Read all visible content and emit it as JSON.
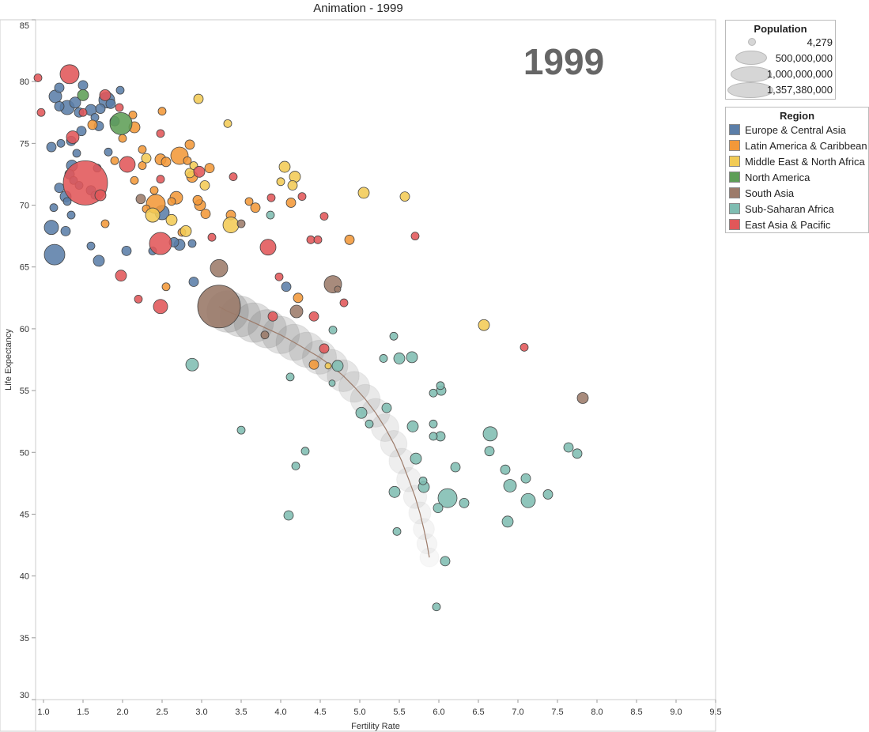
{
  "chart_data": {
    "type": "scatter",
    "title": "Animation - 1999",
    "watermark": "1999",
    "xlabel": "Fertility Rate",
    "ylabel": "Life Expectancy",
    "xlim": [
      0.9,
      9.5
    ],
    "ylim": [
      30,
      85
    ],
    "x_ticks": [
      "1.0",
      "1.5",
      "2.0",
      "2.5",
      "3.0",
      "3.5",
      "4.0",
      "4.5",
      "5.0",
      "5.5",
      "6.0",
      "6.5",
      "7.0",
      "7.5",
      "8.0",
      "8.5",
      "9.0",
      "9.5"
    ],
    "y_ticks": [
      "30",
      "35",
      "40",
      "45",
      "50",
      "55",
      "60",
      "65",
      "70",
      "75",
      "80",
      "85"
    ],
    "size_legend": {
      "title": "Population",
      "entries": [
        "4,279",
        "500,000,000",
        "1,000,000,000",
        "1,357,380,000"
      ]
    },
    "color_legend": {
      "title": "Region",
      "entries": [
        {
          "name": "Europe & Central Asia",
          "color": "#5b7ea8"
        },
        {
          "name": "Latin America & Caribbean",
          "color": "#f29839"
        },
        {
          "name": "Middle East & North Africa",
          "color": "#f2cb55"
        },
        {
          "name": "North America",
          "color": "#5e9e57"
        },
        {
          "name": "South Asia",
          "color": "#9c7b6a"
        },
        {
          "name": "Sub-Saharan Africa",
          "color": "#7fbdb2"
        },
        {
          "name": "East Asia & Pacific",
          "color": "#e15759"
        }
      ]
    },
    "trail": {
      "region": "South Asia",
      "points": [
        [
          5.88,
          41.5
        ],
        [
          5.85,
          42.6
        ],
        [
          5.81,
          43.8
        ],
        [
          5.76,
          45.1
        ],
        [
          5.7,
          46.4
        ],
        [
          5.62,
          47.8
        ],
        [
          5.53,
          49.3
        ],
        [
          5.43,
          50.7
        ],
        [
          5.32,
          52.0
        ],
        [
          5.2,
          53.2
        ],
        [
          5.07,
          54.3
        ],
        [
          4.93,
          55.3
        ],
        [
          4.79,
          56.2
        ],
        [
          4.64,
          57.0
        ],
        [
          4.49,
          57.7
        ],
        [
          4.33,
          58.3
        ],
        [
          4.17,
          58.9
        ],
        [
          4.0,
          59.5
        ],
        [
          3.83,
          60.0
        ],
        [
          3.66,
          60.5
        ],
        [
          3.49,
          61.0
        ],
        [
          3.33,
          61.4
        ],
        [
          3.22,
          61.8
        ]
      ]
    },
    "series": [
      {
        "name": "Europe & Central Asia",
        "points": [
          [
            1.2,
            79.5,
            6
          ],
          [
            1.5,
            79.7,
            6
          ],
          [
            1.15,
            78.8,
            8
          ],
          [
            1.4,
            78.3,
            7
          ],
          [
            1.3,
            77.9,
            9
          ],
          [
            1.45,
            77.5,
            6
          ],
          [
            1.6,
            77.7,
            7
          ],
          [
            1.72,
            77.8,
            6
          ],
          [
            1.8,
            78.5,
            10
          ],
          [
            1.85,
            78.2,
            6
          ],
          [
            1.97,
            79.3,
            5
          ],
          [
            1.2,
            78.0,
            6
          ],
          [
            1.65,
            77.1,
            5
          ],
          [
            1.7,
            76.4,
            6
          ],
          [
            1.48,
            76.0,
            6
          ],
          [
            1.9,
            76.8,
            6
          ],
          [
            1.35,
            75.2,
            6
          ],
          [
            1.1,
            74.7,
            6
          ],
          [
            1.22,
            75.0,
            5
          ],
          [
            1.42,
            74.2,
            5
          ],
          [
            1.82,
            74.3,
            5
          ],
          [
            1.68,
            73.0,
            5
          ],
          [
            1.36,
            73.2,
            7
          ],
          [
            1.33,
            72.5,
            6
          ],
          [
            1.38,
            72.0,
            5
          ],
          [
            1.45,
            71.6,
            5
          ],
          [
            1.6,
            71.2,
            6
          ],
          [
            1.2,
            71.4,
            6
          ],
          [
            1.28,
            70.7,
            7
          ],
          [
            1.3,
            70.3,
            5
          ],
          [
            1.65,
            70.8,
            5
          ],
          [
            1.13,
            69.8,
            5
          ],
          [
            1.35,
            69.2,
            5
          ],
          [
            1.1,
            68.2,
            9
          ],
          [
            1.28,
            67.9,
            6
          ],
          [
            1.6,
            66.7,
            5
          ],
          [
            2.05,
            66.3,
            6
          ],
          [
            2.38,
            66.3,
            5
          ],
          [
            2.5,
            69.4,
            9
          ],
          [
            2.65,
            67.0,
            6
          ],
          [
            2.72,
            66.8,
            7
          ],
          [
            2.88,
            66.9,
            5
          ],
          [
            1.14,
            66.0,
            13
          ],
          [
            1.7,
            65.5,
            7
          ],
          [
            2.9,
            63.8,
            6
          ],
          [
            4.07,
            63.4,
            6
          ]
        ]
      },
      {
        "name": "Latin America & Caribbean",
        "points": [
          [
            2.5,
            77.6,
            5
          ],
          [
            2.15,
            76.3,
            7
          ],
          [
            2.13,
            77.3,
            5
          ],
          [
            1.62,
            76.5,
            6
          ],
          [
            2.0,
            75.4,
            5
          ],
          [
            1.9,
            73.6,
            5
          ],
          [
            2.25,
            74.5,
            5
          ],
          [
            2.48,
            73.7,
            7
          ],
          [
            2.55,
            73.5,
            6
          ],
          [
            2.72,
            74.0,
            11
          ],
          [
            2.85,
            74.9,
            6
          ],
          [
            2.82,
            73.6,
            5
          ],
          [
            2.4,
            71.2,
            5
          ],
          [
            2.42,
            70.1,
            12
          ],
          [
            2.3,
            69.7,
            5
          ],
          [
            2.68,
            70.6,
            8
          ],
          [
            2.62,
            70.3,
            5
          ],
          [
            2.88,
            72.3,
            7
          ],
          [
            3.1,
            73.0,
            6
          ],
          [
            2.15,
            72.0,
            5
          ],
          [
            2.95,
            70.4,
            6
          ],
          [
            2.98,
            70.0,
            7
          ],
          [
            3.05,
            69.3,
            6
          ],
          [
            3.37,
            69.2,
            6
          ],
          [
            3.6,
            70.3,
            5
          ],
          [
            3.68,
            69.8,
            6
          ],
          [
            2.75,
            67.8,
            5
          ],
          [
            2.55,
            63.4,
            5
          ],
          [
            1.78,
            68.5,
            5
          ],
          [
            2.25,
            73.2,
            5
          ],
          [
            4.22,
            62.5,
            6
          ],
          [
            4.13,
            70.2,
            6
          ],
          [
            4.87,
            67.2,
            6
          ],
          [
            4.42,
            57.1,
            6
          ]
        ]
      },
      {
        "name": "Middle East & North Africa",
        "points": [
          [
            2.96,
            78.6,
            6
          ],
          [
            3.33,
            76.6,
            5
          ],
          [
            2.3,
            73.8,
            6
          ],
          [
            3.04,
            71.6,
            6
          ],
          [
            2.85,
            72.6,
            6
          ],
          [
            2.38,
            69.2,
            9
          ],
          [
            2.62,
            68.8,
            7
          ],
          [
            2.8,
            67.9,
            7
          ],
          [
            3.37,
            68.4,
            10
          ],
          [
            4.05,
            73.1,
            7
          ],
          [
            4.18,
            72.3,
            7
          ],
          [
            4.0,
            71.9,
            5
          ],
          [
            4.15,
            71.6,
            6
          ],
          [
            2.9,
            73.2,
            5
          ],
          [
            5.05,
            71.0,
            7
          ],
          [
            5.57,
            70.7,
            6
          ],
          [
            6.57,
            60.3,
            7
          ],
          [
            4.6,
            57.0,
            4
          ]
        ]
      },
      {
        "name": "North America",
        "points": [
          [
            1.5,
            78.9,
            7
          ],
          [
            1.98,
            76.6,
            14
          ]
        ]
      },
      {
        "name": "South Asia",
        "points": [
          [
            3.22,
            61.8,
            27
          ],
          [
            4.66,
            63.6,
            11
          ],
          [
            4.2,
            61.4,
            8
          ],
          [
            3.22,
            64.9,
            11
          ],
          [
            3.5,
            68.5,
            5
          ],
          [
            2.23,
            70.5,
            6
          ],
          [
            7.82,
            54.4,
            7
          ],
          [
            3.8,
            59.5,
            5
          ],
          [
            4.72,
            63.2,
            4
          ]
        ]
      },
      {
        "name": "Sub-Saharan Africa",
        "points": [
          [
            2.88,
            57.1,
            8
          ],
          [
            3.5,
            51.8,
            5
          ],
          [
            3.87,
            69.2,
            5
          ],
          [
            4.12,
            56.1,
            5
          ],
          [
            4.19,
            48.9,
            5
          ],
          [
            4.31,
            50.1,
            5
          ],
          [
            4.1,
            44.9,
            6
          ],
          [
            4.66,
            59.9,
            5
          ],
          [
            4.72,
            57.0,
            7
          ],
          [
            5.02,
            53.2,
            7
          ],
          [
            5.12,
            52.3,
            5
          ],
          [
            5.3,
            57.6,
            5
          ],
          [
            5.34,
            53.6,
            6
          ],
          [
            5.43,
            59.4,
            5
          ],
          [
            5.5,
            57.6,
            7
          ],
          [
            5.66,
            57.7,
            7
          ],
          [
            5.67,
            52.1,
            7
          ],
          [
            5.71,
            49.5,
            7
          ],
          [
            5.8,
            47.7,
            5
          ],
          [
            5.81,
            47.2,
            7
          ],
          [
            5.44,
            46.8,
            7
          ],
          [
            5.47,
            43.6,
            5
          ],
          [
            5.93,
            52.3,
            5
          ],
          [
            5.93,
            54.8,
            5
          ],
          [
            6.02,
            55.4,
            5
          ],
          [
            6.03,
            55.0,
            6
          ],
          [
            5.93,
            51.3,
            5
          ],
          [
            6.02,
            51.3,
            6
          ],
          [
            5.99,
            45.5,
            6
          ],
          [
            6.11,
            46.3,
            12
          ],
          [
            6.21,
            48.8,
            6
          ],
          [
            6.32,
            45.9,
            6
          ],
          [
            6.65,
            51.5,
            9
          ],
          [
            6.64,
            50.1,
            6
          ],
          [
            6.84,
            48.6,
            6
          ],
          [
            6.9,
            47.3,
            8
          ],
          [
            6.87,
            44.4,
            7
          ],
          [
            7.1,
            47.9,
            6
          ],
          [
            7.13,
            46.1,
            9
          ],
          [
            7.38,
            46.6,
            6
          ],
          [
            7.64,
            50.4,
            6
          ],
          [
            7.75,
            49.9,
            6
          ],
          [
            6.08,
            41.2,
            6
          ],
          [
            5.97,
            37.5,
            5
          ],
          [
            4.65,
            55.6,
            4
          ]
        ]
      },
      {
        "name": "East Asia & Pacific",
        "points": [
          [
            0.93,
            80.3,
            5
          ],
          [
            0.97,
            77.5,
            5
          ],
          [
            1.33,
            80.6,
            12
          ],
          [
            1.78,
            78.9,
            7
          ],
          [
            1.96,
            77.9,
            5
          ],
          [
            1.5,
            77.5,
            5
          ],
          [
            1.37,
            75.5,
            8
          ],
          [
            2.48,
            75.8,
            5
          ],
          [
            2.06,
            73.3,
            10
          ],
          [
            2.48,
            72.1,
            5
          ],
          [
            2.97,
            72.7,
            7
          ],
          [
            3.4,
            72.3,
            5
          ],
          [
            1.53,
            71.8,
            28
          ],
          [
            1.72,
            70.8,
            7
          ],
          [
            3.88,
            70.6,
            5
          ],
          [
            4.27,
            70.7,
            5
          ],
          [
            4.55,
            69.1,
            5
          ],
          [
            4.38,
            67.2,
            5
          ],
          [
            4.47,
            67.2,
            5
          ],
          [
            5.7,
            67.5,
            5
          ],
          [
            3.84,
            66.6,
            10
          ],
          [
            2.48,
            66.9,
            14
          ],
          [
            3.13,
            67.4,
            5
          ],
          [
            1.98,
            64.3,
            7
          ],
          [
            2.2,
            62.4,
            5
          ],
          [
            2.48,
            61.8,
            9
          ],
          [
            3.98,
            64.2,
            5
          ],
          [
            4.42,
            61.0,
            6
          ],
          [
            4.8,
            62.1,
            5
          ],
          [
            3.9,
            61.0,
            6
          ],
          [
            4.55,
            58.4,
            6
          ],
          [
            7.08,
            58.5,
            5
          ]
        ]
      }
    ]
  }
}
